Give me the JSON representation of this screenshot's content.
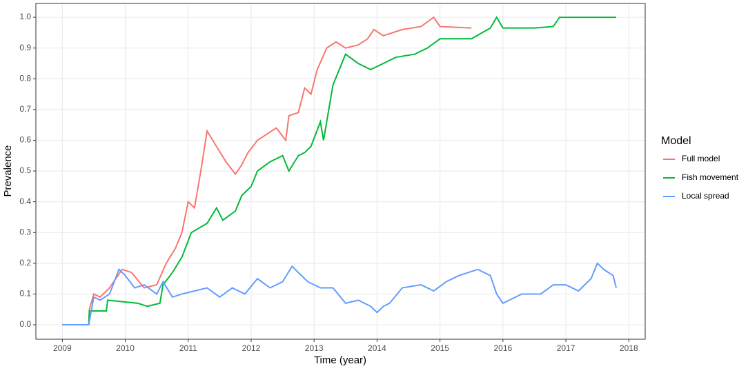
{
  "chart_data": {
    "type": "line",
    "x_label": "Time (year)",
    "y_label": "Prevalence",
    "legend_title": "Model",
    "legend": "right",
    "grid": true,
    "xlim": [
      2008.58,
      2018.26
    ],
    "ylim": [
      -0.047,
      1.045
    ],
    "xticks": [
      2009,
      2010,
      2011,
      2012,
      2013,
      2014,
      2015,
      2016,
      2017,
      2018
    ],
    "yticks": [
      {
        "value": 0,
        "label": "0.0"
      },
      0.1,
      0.2,
      0.3,
      0.4,
      0.5,
      0.6,
      0.7,
      0.8,
      0.9,
      {
        "value": 1,
        "label": "1.0"
      }
    ],
    "series": [
      {
        "name": "Full model",
        "color": "#f8766d",
        "x": [
          2009,
          2009.42,
          2009.43,
          2009.5,
          2009.6,
          2009.75,
          2009.95,
          2010.1,
          2010.3,
          2010.5,
          2010.65,
          2010.8,
          2010.9,
          2011.0,
          2011.1,
          2011.2,
          2011.3,
          2011.45,
          2011.6,
          2011.75,
          2011.85,
          2011.95,
          2012.1,
          2012.25,
          2012.4,
          2012.55,
          2012.6,
          2012.75,
          2012.85,
          2012.95,
          2013.05,
          2013.2,
          2013.35,
          2013.5,
          2013.7,
          2013.85,
          2013.95,
          2014.1,
          2014.4,
          2014.7,
          2014.9,
          2015.0,
          2015.5
        ],
        "values": [
          0,
          0,
          0.05,
          0.1,
          0.09,
          0.12,
          0.18,
          0.17,
          0.12,
          0.13,
          0.2,
          0.25,
          0.3,
          0.4,
          0.38,
          0.5,
          0.63,
          0.58,
          0.53,
          0.49,
          0.52,
          0.56,
          0.6,
          0.62,
          0.64,
          0.6,
          0.68,
          0.69,
          0.77,
          0.75,
          0.83,
          0.9,
          0.92,
          0.9,
          0.91,
          0.93,
          0.96,
          0.94,
          0.96,
          0.97,
          1.0,
          0.97,
          0.965
        ]
      },
      {
        "name": "Fish movement",
        "color": "#00ba38",
        "x": [
          2009,
          2009.42,
          2009.43,
          2009.7,
          2009.72,
          2010.2,
          2010.35,
          2010.55,
          2010.6,
          2010.75,
          2010.9,
          2011.05,
          2011.3,
          2011.45,
          2011.55,
          2011.75,
          2011.85,
          2012.0,
          2012.1,
          2012.3,
          2012.5,
          2012.6,
          2012.75,
          2012.85,
          2012.95,
          2013.1,
          2013.15,
          2013.3,
          2013.5,
          2013.7,
          2013.9,
          2014.1,
          2014.3,
          2014.6,
          2014.8,
          2015.0,
          2015.5,
          2015.8,
          2015.9,
          2016.0,
          2016.5,
          2016.8,
          2016.9,
          2017.8
        ],
        "values": [
          0,
          0,
          0.045,
          0.045,
          0.08,
          0.07,
          0.06,
          0.07,
          0.13,
          0.17,
          0.22,
          0.3,
          0.33,
          0.38,
          0.34,
          0.37,
          0.42,
          0.45,
          0.5,
          0.53,
          0.55,
          0.5,
          0.55,
          0.56,
          0.58,
          0.66,
          0.6,
          0.78,
          0.88,
          0.85,
          0.83,
          0.85,
          0.87,
          0.88,
          0.9,
          0.93,
          0.93,
          0.965,
          1.0,
          0.965,
          0.965,
          0.97,
          1.0,
          1.0
        ]
      },
      {
        "name": "Local spread",
        "color": "#619cff",
        "x": [
          2009,
          2009.42,
          2009.5,
          2009.6,
          2009.75,
          2009.9,
          2010.0,
          2010.15,
          2010.3,
          2010.5,
          2010.6,
          2010.75,
          2010.9,
          2011.1,
          2011.3,
          2011.5,
          2011.7,
          2011.9,
          2012.1,
          2012.3,
          2012.5,
          2012.65,
          2012.75,
          2012.9,
          2013.1,
          2013.3,
          2013.5,
          2013.7,
          2013.9,
          2014.0,
          2014.1,
          2014.2,
          2014.4,
          2014.7,
          2014.9,
          2015.1,
          2015.3,
          2015.6,
          2015.8,
          2015.9,
          2016.0,
          2016.1,
          2016.3,
          2016.6,
          2016.8,
          2017.0,
          2017.2,
          2017.4,
          2017.5,
          2017.6,
          2017.75,
          2017.8
        ],
        "values": [
          0,
          0,
          0.09,
          0.08,
          0.1,
          0.18,
          0.16,
          0.12,
          0.13,
          0.1,
          0.14,
          0.09,
          0.1,
          0.11,
          0.12,
          0.09,
          0.12,
          0.1,
          0.15,
          0.12,
          0.14,
          0.19,
          0.17,
          0.14,
          0.12,
          0.12,
          0.07,
          0.08,
          0.06,
          0.04,
          0.06,
          0.07,
          0.12,
          0.13,
          0.11,
          0.14,
          0.16,
          0.18,
          0.16,
          0.1,
          0.07,
          0.08,
          0.1,
          0.1,
          0.13,
          0.13,
          0.11,
          0.15,
          0.2,
          0.18,
          0.16,
          0.12
        ]
      }
    ]
  }
}
